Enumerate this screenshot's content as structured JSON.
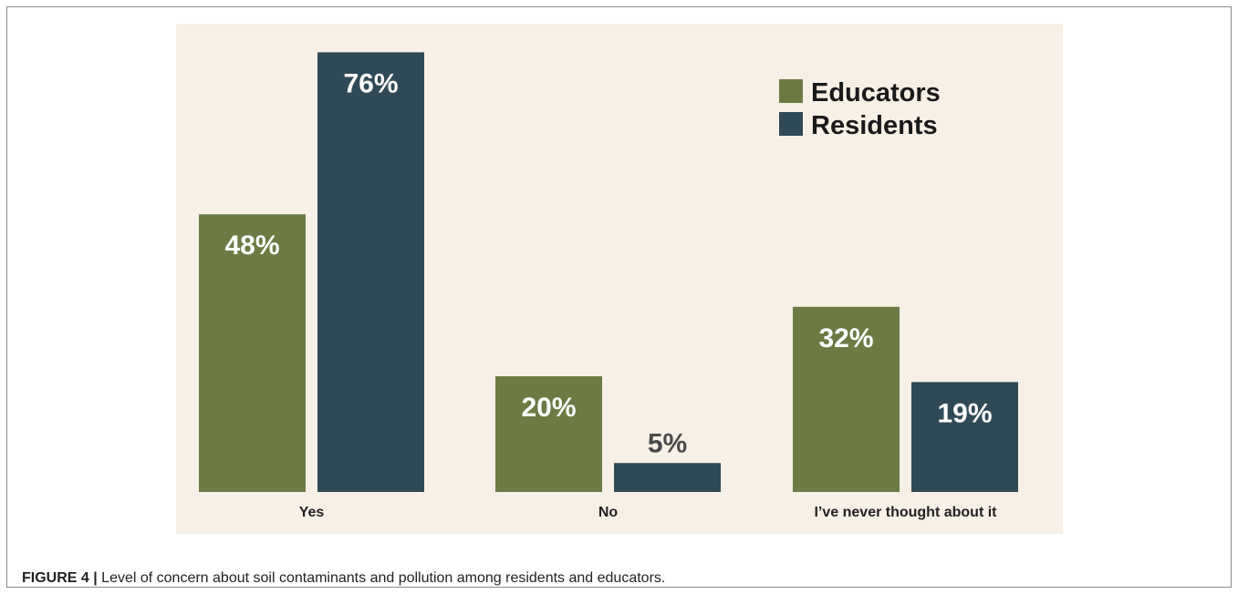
{
  "chart_data": {
    "type": "bar",
    "categories": [
      "Yes",
      "No",
      "I’ve never thought about it"
    ],
    "series": [
      {
        "name": "Educators",
        "values": [
          48,
          20,
          32
        ],
        "labels": [
          "48%",
          "20%",
          "32%"
        ],
        "color": "#6b7b43"
      },
      {
        "name": "Residents",
        "values": [
          76,
          5,
          19
        ],
        "labels": [
          "76%",
          "5%",
          "19%"
        ],
        "color": "#2f4a56"
      }
    ],
    "ylim": [
      0,
      100
    ],
    "legend": "top-right",
    "grid": false,
    "background": "#f7f0e6"
  },
  "caption": {
    "label": "FIGURE 4 |",
    "text": " Level of concern about soil contaminants and pollution among residents and educators."
  }
}
